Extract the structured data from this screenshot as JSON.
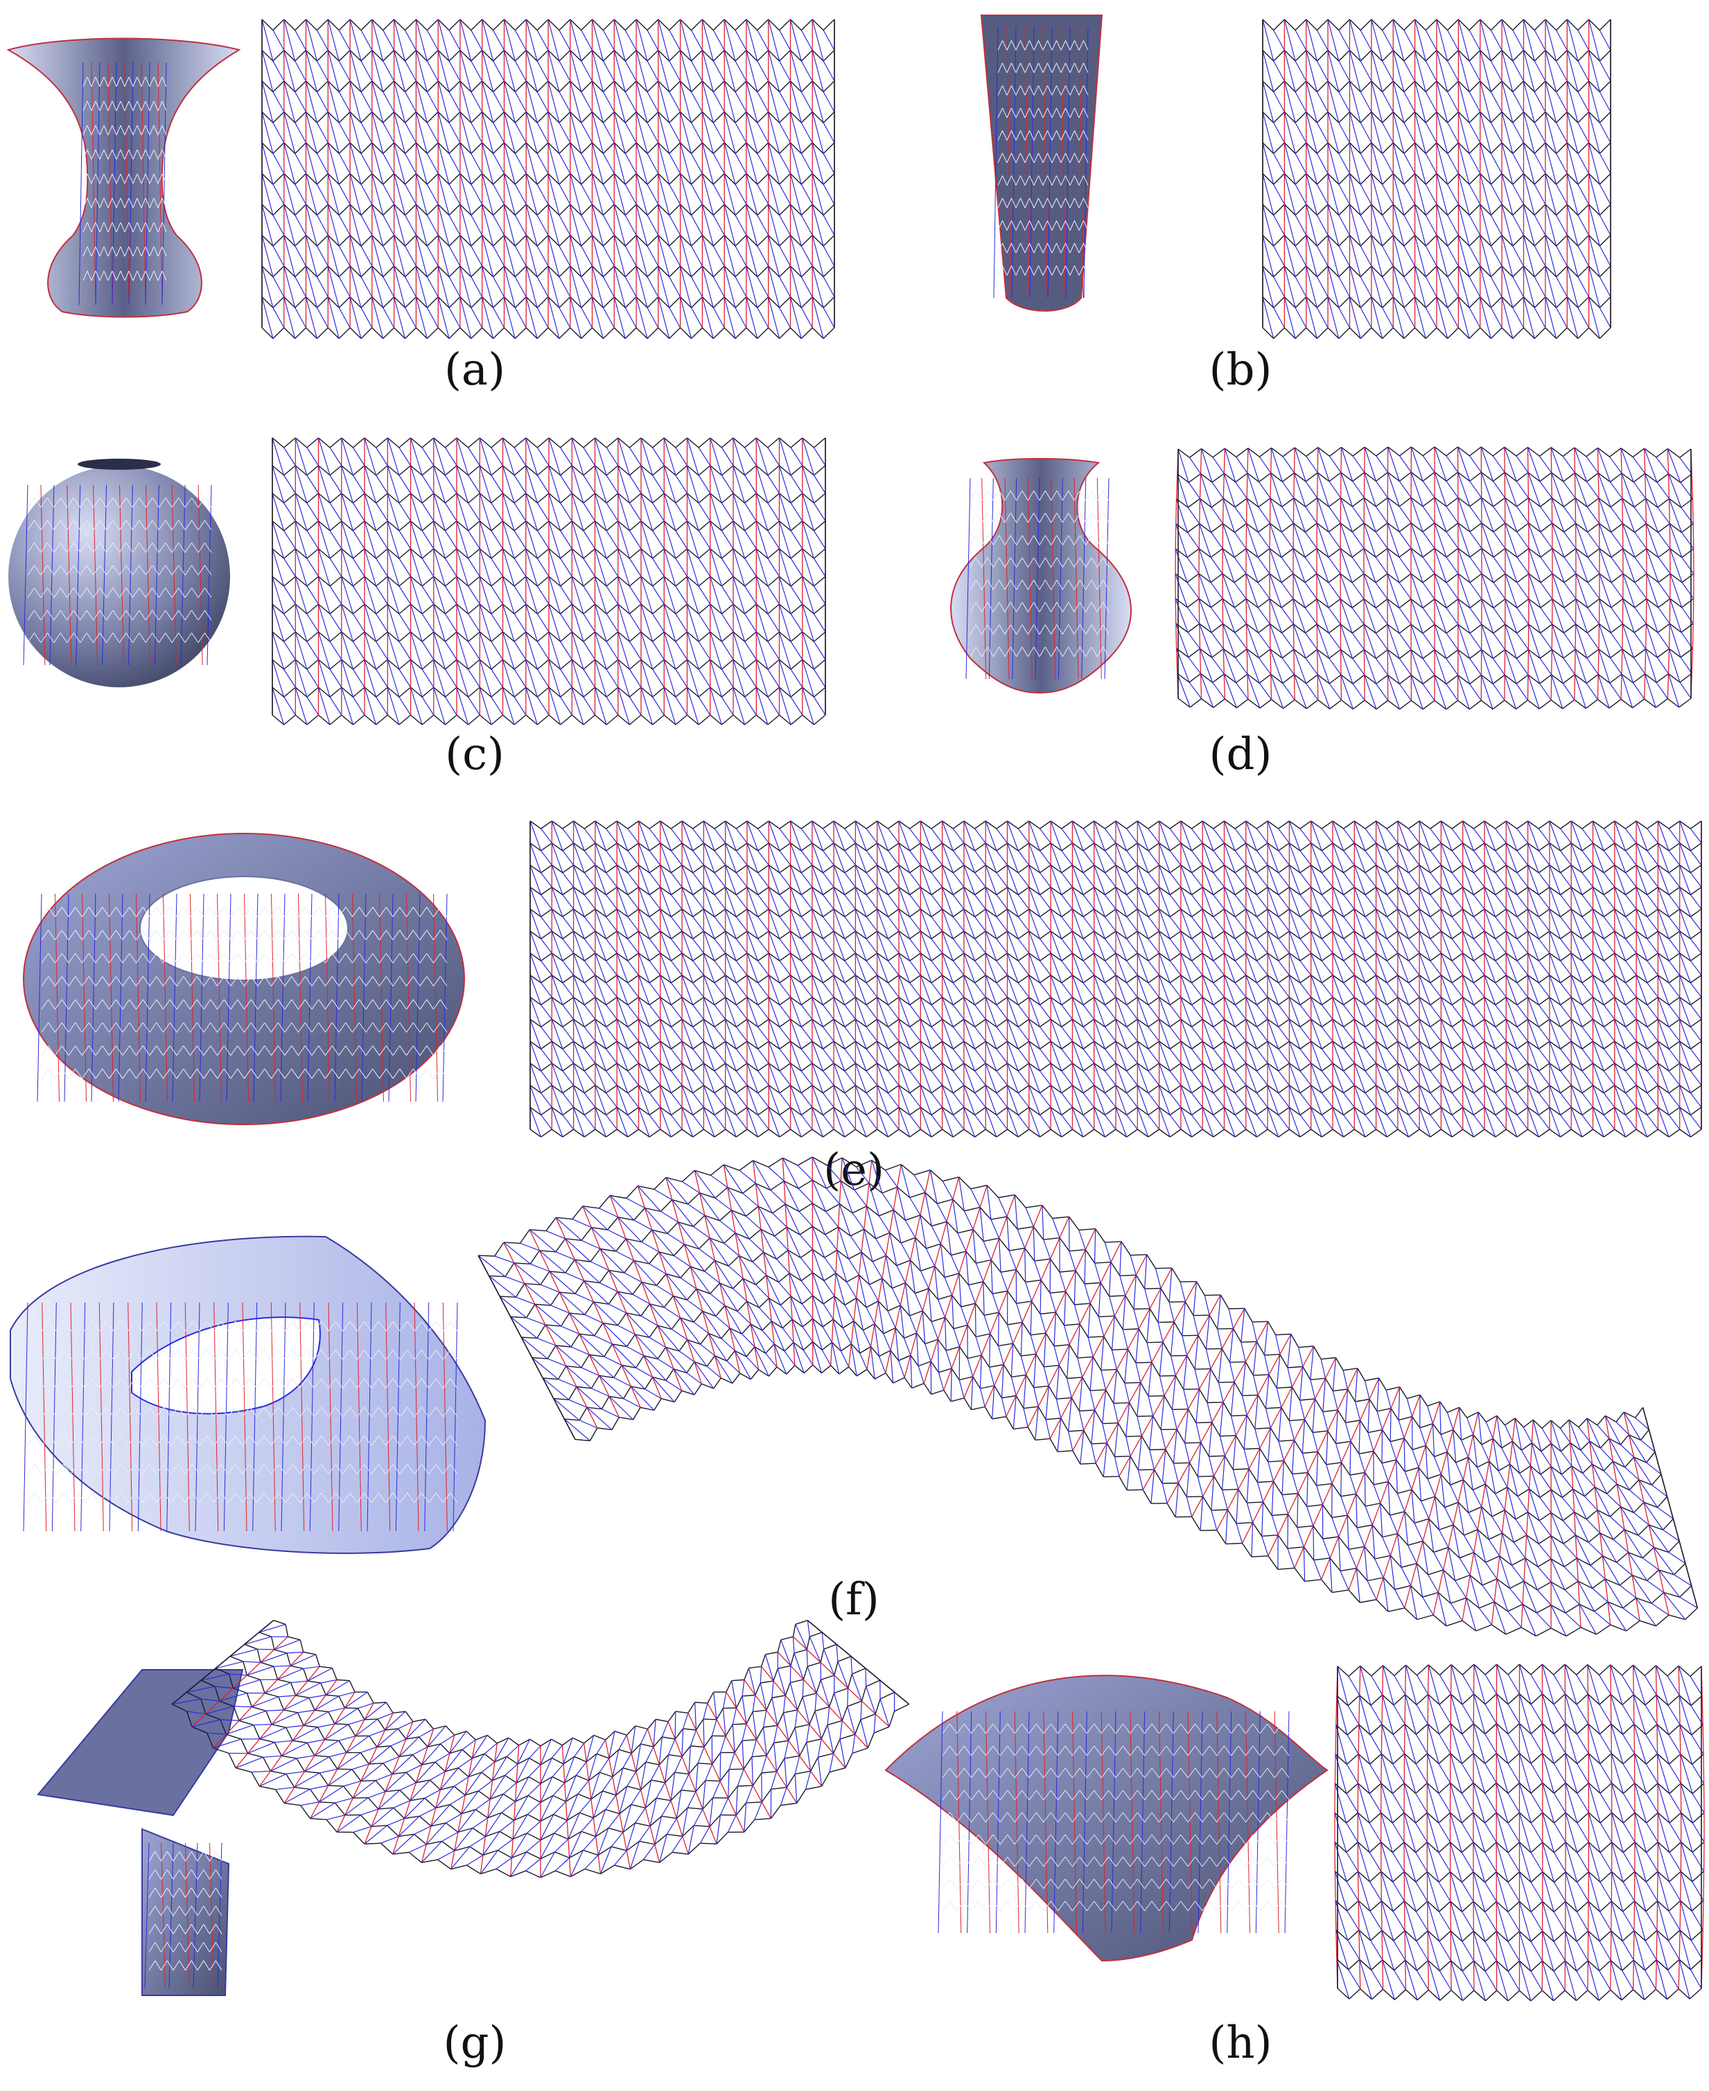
{
  "figure": {
    "panels": [
      {
        "id": "a",
        "caption": "(a)",
        "model": "hyperboloid-vase",
        "pattern": "crease-pattern-rectangle"
      },
      {
        "id": "b",
        "caption": "(b)",
        "model": "tapered-cylinder",
        "pattern": "crease-pattern-rectangle"
      },
      {
        "id": "c",
        "caption": "(c)",
        "model": "sphere",
        "pattern": "crease-pattern-rectangle"
      },
      {
        "id": "d",
        "caption": "(d)",
        "model": "vase",
        "pattern": "crease-pattern-warped"
      },
      {
        "id": "e",
        "caption": "(e)",
        "model": "torus",
        "pattern": "crease-pattern-wide-rectangle"
      },
      {
        "id": "f",
        "caption": "(f)",
        "model": "twisted-ring",
        "pattern": "crease-pattern-s-curve"
      },
      {
        "id": "g",
        "caption": "(g)",
        "model": "helicoid-strip",
        "pattern": "crease-pattern-arc"
      },
      {
        "id": "h",
        "caption": "(h)",
        "model": "saddle-surface",
        "pattern": "crease-pattern-rectangle"
      }
    ]
  },
  "colors": {
    "mountain_fold": "#e0202a",
    "valley_fold": "#2a2ae0",
    "outline": "#1a1a2a",
    "surface_light": "#c8d0f0",
    "surface_dark": "#4a5070",
    "surface_mid": "#8c94c4"
  }
}
